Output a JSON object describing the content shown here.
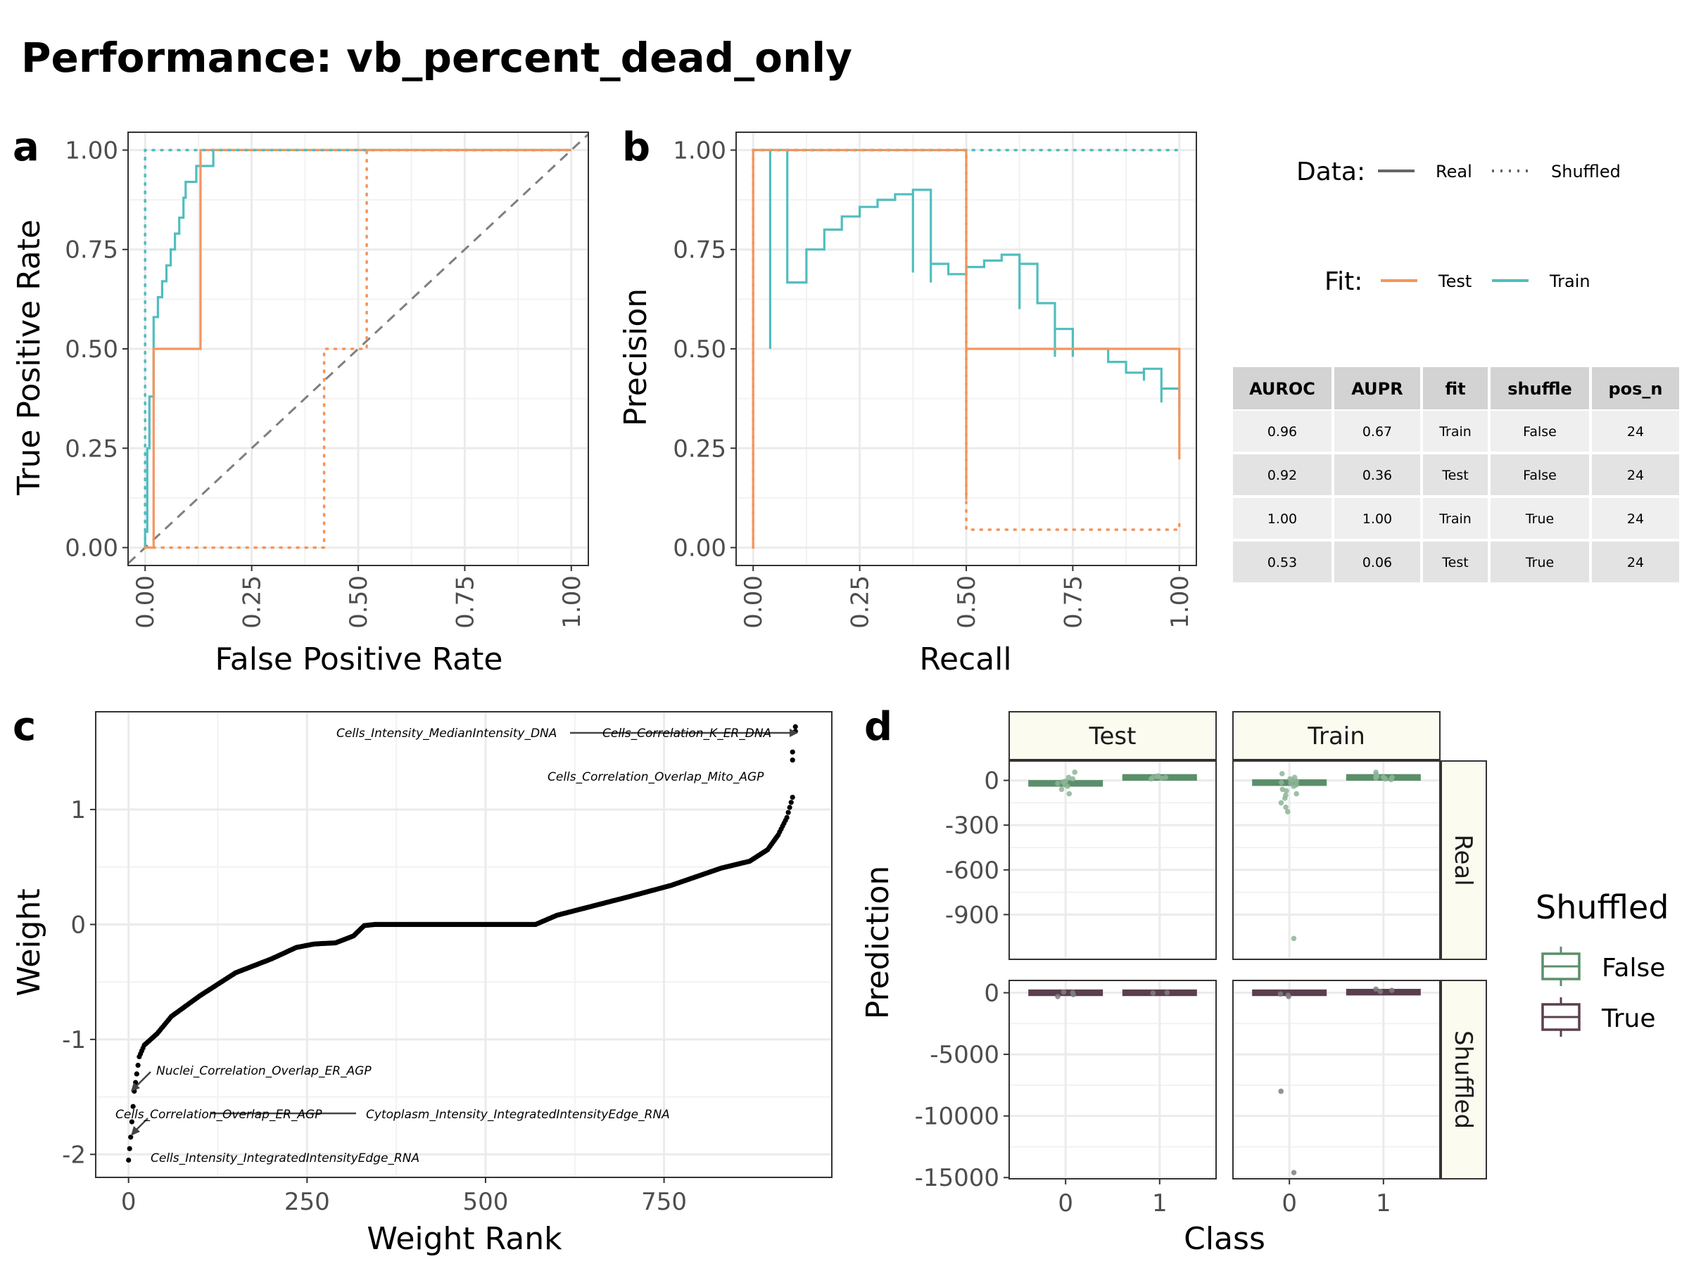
{
  "title": "Performance: vb_percent_dead_only",
  "colors": {
    "test": "#f4955c",
    "train": "#52bdbf",
    "false": "#5b8f6b",
    "true": "#5b3f4e",
    "diag": "#7f7f7f"
  },
  "chart_data": [
    {
      "panel": "a",
      "type": "line",
      "xlabel": "False Positive Rate",
      "ylabel": "True Positive Rate",
      "xlim": [
        -0.04,
        1.04
      ],
      "ylim": [
        -0.045,
        1.045
      ],
      "xticks": [
        "0.00",
        "0.25",
        "0.50",
        "0.75",
        "1.00"
      ],
      "yticks": [
        "0.00",
        "0.25",
        "0.50",
        "0.75",
        "1.00"
      ],
      "diagonal": true,
      "series": [
        {
          "fit": "Train",
          "data": "Real",
          "points": [
            [
              0,
              0
            ],
            [
              0,
              0.04
            ],
            [
              0.005,
              0.04
            ],
            [
              0.005,
              0.13
            ],
            [
              0.005,
              0.25
            ],
            [
              0.01,
              0.25
            ],
            [
              0.01,
              0.38
            ],
            [
              0.02,
              0.38
            ],
            [
              0.02,
              0.5
            ],
            [
              0.02,
              0.58
            ],
            [
              0.03,
              0.58
            ],
            [
              0.03,
              0.63
            ],
            [
              0.04,
              0.63
            ],
            [
              0.04,
              0.67
            ],
            [
              0.05,
              0.67
            ],
            [
              0.05,
              0.71
            ],
            [
              0.06,
              0.71
            ],
            [
              0.06,
              0.75
            ],
            [
              0.07,
              0.75
            ],
            [
              0.07,
              0.79
            ],
            [
              0.08,
              0.79
            ],
            [
              0.08,
              0.83
            ],
            [
              0.09,
              0.83
            ],
            [
              0.09,
              0.88
            ],
            [
              0.095,
              0.88
            ],
            [
              0.095,
              0.92
            ],
            [
              0.12,
              0.92
            ],
            [
              0.12,
              0.96
            ],
            [
              0.16,
              0.96
            ],
            [
              0.16,
              1.0
            ],
            [
              1.0,
              1.0
            ]
          ]
        },
        {
          "fit": "Test",
          "data": "Real",
          "points": [
            [
              0,
              0
            ],
            [
              0.02,
              0
            ],
            [
              0.02,
              0.5
            ],
            [
              0.13,
              0.5
            ],
            [
              0.13,
              1.0
            ],
            [
              1.0,
              1.0
            ]
          ]
        },
        {
          "fit": "Train",
          "data": "Shuffled",
          "points": [
            [
              0,
              0
            ],
            [
              0,
              1.0
            ],
            [
              1.0,
              1.0
            ]
          ]
        },
        {
          "fit": "Test",
          "data": "Shuffled",
          "points": [
            [
              0,
              0
            ],
            [
              0.42,
              0
            ],
            [
              0.42,
              0.5
            ],
            [
              0.52,
              0.5
            ],
            [
              0.52,
              1.0
            ],
            [
              1.0,
              1.0
            ]
          ]
        }
      ]
    },
    {
      "panel": "b",
      "type": "line",
      "xlabel": "Recall",
      "ylabel": "Precision",
      "xlim": [
        -0.04,
        1.04
      ],
      "ylim": [
        -0.045,
        1.045
      ],
      "xticks": [
        "0.00",
        "0.25",
        "0.50",
        "0.75",
        "1.00"
      ],
      "yticks": [
        "0.00",
        "0.25",
        "0.50",
        "0.75",
        "1.00"
      ],
      "series": [
        {
          "fit": "Train",
          "data": "Real",
          "points": [
            [
              0,
              1.0
            ],
            [
              0.04,
              1.0
            ],
            [
              0.04,
              0.5
            ],
            [
              0.04,
              1.0
            ],
            [
              0.08,
              1.0
            ],
            [
              0.08,
              0.667
            ],
            [
              0.125,
              0.667
            ],
            [
              0.125,
              0.75
            ],
            [
              0.167,
              0.75
            ],
            [
              0.167,
              0.8
            ],
            [
              0.208,
              0.8
            ],
            [
              0.208,
              0.833
            ],
            [
              0.25,
              0.833
            ],
            [
              0.25,
              0.857
            ],
            [
              0.292,
              0.857
            ],
            [
              0.292,
              0.875
            ],
            [
              0.333,
              0.875
            ],
            [
              0.333,
              0.889
            ],
            [
              0.375,
              0.889
            ],
            [
              0.375,
              0.692
            ],
            [
              0.375,
              0.9
            ],
            [
              0.417,
              0.9
            ],
            [
              0.417,
              0.667
            ],
            [
              0.417,
              0.714
            ],
            [
              0.458,
              0.714
            ],
            [
              0.458,
              0.688
            ],
            [
              0.5,
              0.688
            ],
            [
              0.5,
              0.706
            ],
            [
              0.542,
              0.706
            ],
            [
              0.542,
              0.722
            ],
            [
              0.583,
              0.722
            ],
            [
              0.583,
              0.737
            ],
            [
              0.625,
              0.737
            ],
            [
              0.625,
              0.6
            ],
            [
              0.625,
              0.714
            ],
            [
              0.667,
              0.714
            ],
            [
              0.667,
              0.615
            ],
            [
              0.708,
              0.615
            ],
            [
              0.708,
              0.48
            ],
            [
              0.708,
              0.55
            ],
            [
              0.75,
              0.55
            ],
            [
              0.75,
              0.48
            ],
            [
              0.75,
              0.5
            ],
            [
              0.833,
              0.5
            ],
            [
              0.833,
              0.47
            ],
            [
              0.833,
              0.5
            ],
            [
              0.833,
              0.467
            ],
            [
              0.875,
              0.467
            ],
            [
              0.875,
              0.44
            ],
            [
              0.917,
              0.44
            ],
            [
              0.917,
              0.42
            ],
            [
              0.917,
              0.45
            ],
            [
              0.958,
              0.45
            ],
            [
              0.958,
              0.365
            ],
            [
              0.958,
              0.4
            ],
            [
              1.0,
              0.4
            ],
            [
              1.0,
              0.333
            ]
          ]
        },
        {
          "fit": "Test",
          "data": "Real",
          "points": [
            [
              0,
              0
            ],
            [
              0,
              1.0
            ],
            [
              0.5,
              1.0
            ],
            [
              0.5,
              0.12
            ],
            [
              0.5,
              0.5
            ],
            [
              1.0,
              0.5
            ],
            [
              1.0,
              0.222
            ]
          ]
        },
        {
          "fit": "Train",
          "data": "Shuffled",
          "points": [
            [
              0,
              1.0
            ],
            [
              1.0,
              1.0
            ]
          ]
        },
        {
          "fit": "Test",
          "data": "Shuffled",
          "points": [
            [
              0,
              0
            ],
            [
              0,
              1.0
            ],
            [
              0.5,
              1.0
            ],
            [
              0.5,
              0.045
            ],
            [
              1.0,
              0.045
            ],
            [
              1.0,
              0.063
            ]
          ]
        }
      ]
    },
    {
      "panel": "c",
      "type": "scatter",
      "xlabel": "Weight Rank",
      "ylabel": "Weight",
      "xlim": [
        -46,
        985
      ],
      "ylim": [
        -2.2,
        1.85
      ],
      "xticks": [
        0,
        250,
        500,
        750
      ],
      "yticks": [
        1,
        0,
        -1,
        -2
      ],
      "curve_knots": [
        [
          0,
          -2.05
        ],
        [
          3,
          -1.85
        ],
        [
          8,
          -1.45
        ],
        [
          15,
          -1.15
        ],
        [
          22,
          -1.05
        ],
        [
          40,
          -0.95
        ],
        [
          60,
          -0.8
        ],
        [
          100,
          -0.62
        ],
        [
          150,
          -0.42
        ],
        [
          200,
          -0.3
        ],
        [
          235,
          -0.2
        ],
        [
          260,
          -0.17
        ],
        [
          290,
          -0.16
        ],
        [
          315,
          -0.1
        ],
        [
          330,
          -0.01
        ],
        [
          345,
          0
        ],
        [
          570,
          0
        ],
        [
          600,
          0.08
        ],
        [
          650,
          0.16
        ],
        [
          700,
          0.24
        ],
        [
          760,
          0.34
        ],
        [
          830,
          0.49
        ],
        [
          870,
          0.55
        ],
        [
          895,
          0.65
        ],
        [
          910,
          0.78
        ],
        [
          922,
          0.93
        ],
        [
          932,
          1.15
        ]
      ],
      "outliers": [
        [
          930,
          1.5
        ],
        [
          930,
          1.43
        ],
        [
          934,
          1.68
        ],
        [
          934,
          1.72
        ]
      ],
      "labels": [
        {
          "text": "Cells_Intensity_MedianIntensity_DNA",
          "x": 310,
          "y": 1.68
        },
        {
          "text": "Cells_Correlation_K_ER_DNA",
          "x": 725,
          "y": 1.68
        },
        {
          "text": "Cells_Correlation_Overlap_Mito_AGP",
          "x": 650,
          "y": 1.3
        },
        {
          "text": "Nuclei_Correlation_Overlap_ER_AGP",
          "x": 40,
          "y": -1.3
        },
        {
          "text": "Cells_Correlation_Overlap_ER_AGP",
          "x": -18,
          "y": -1.68
        },
        {
          "text": "Cytoplasm_Intensity_IntegratedIntensityEdge_RNA",
          "x": 335,
          "y": -1.68
        },
        {
          "text": "Cells_Intensity_IntegratedIntensityEdge_RNA",
          "x": 33,
          "y": -2.05
        }
      ]
    },
    {
      "panel": "d",
      "type": "box",
      "xlabel": "Class",
      "ylabel": "Prediction",
      "columns": [
        "Test",
        "Train"
      ],
      "rows": [
        "Real",
        "Shuffled"
      ],
      "xticks": [
        "0",
        "1"
      ],
      "legend_title": "Shuffled",
      "legend": [
        "False",
        "True"
      ],
      "real_ylim": [
        -1200,
        130
      ],
      "real_yticks": [
        0,
        -300,
        -600,
        -900
      ],
      "shuffled_ylim": [
        -15100,
        1000
      ],
      "shuffled_yticks": [
        0,
        -5000,
        -10000,
        -15000
      ],
      "cells": [
        {
          "col": "Test",
          "row": "Real",
          "shuffled": "False",
          "points0": [
            -40,
            -20,
            -5,
            10,
            -60,
            -90,
            20,
            -30,
            55,
            -10
          ],
          "points1": [
            10,
            20,
            25,
            30,
            15,
            22
          ],
          "median0": -20,
          "median1": 20
        },
        {
          "col": "Train",
          "row": "Real",
          "shuffled": "False",
          "points0": [
            -40,
            -20,
            -5,
            10,
            -60,
            -90,
            -120,
            -150,
            -210,
            -180,
            20,
            -30,
            45,
            -1060,
            0,
            -15,
            -70,
            -100
          ],
          "points1": [
            10,
            20,
            25,
            30,
            15,
            22,
            40,
            55,
            5
          ],
          "median0": -15,
          "median1": 20
        },
        {
          "col": "Test",
          "row": "Shuffled",
          "shuffled": "True",
          "points0": [
            20,
            -150,
            -300,
            50
          ],
          "points1": [
            10,
            -20
          ],
          "median0": 0,
          "median1": 0
        },
        {
          "col": "Train",
          "row": "Shuffled",
          "shuffled": "True",
          "points0": [
            -100,
            -200,
            -300,
            -8000,
            -14600
          ],
          "points1": [
            100,
            200,
            300
          ],
          "median0": 0,
          "median1": 50
        }
      ]
    }
  ],
  "legend_ab": {
    "data_title": "Data:",
    "data_items": [
      "Real",
      "Shuffled"
    ],
    "fit_title": "Fit:",
    "fit_items": [
      "Test",
      "Train"
    ]
  },
  "table": {
    "headers": [
      "AUROC",
      "AUPR",
      "fit",
      "shuffle",
      "pos_n"
    ],
    "rows": [
      [
        "0.96",
        "0.67",
        "Train",
        "False",
        "24"
      ],
      [
        "0.92",
        "0.36",
        "Test",
        "False",
        "24"
      ],
      [
        "1.00",
        "1.00",
        "Train",
        "True",
        "24"
      ],
      [
        "0.53",
        "0.06",
        "Test",
        "True",
        "24"
      ]
    ]
  },
  "tags": [
    "a",
    "b",
    "c",
    "d"
  ]
}
